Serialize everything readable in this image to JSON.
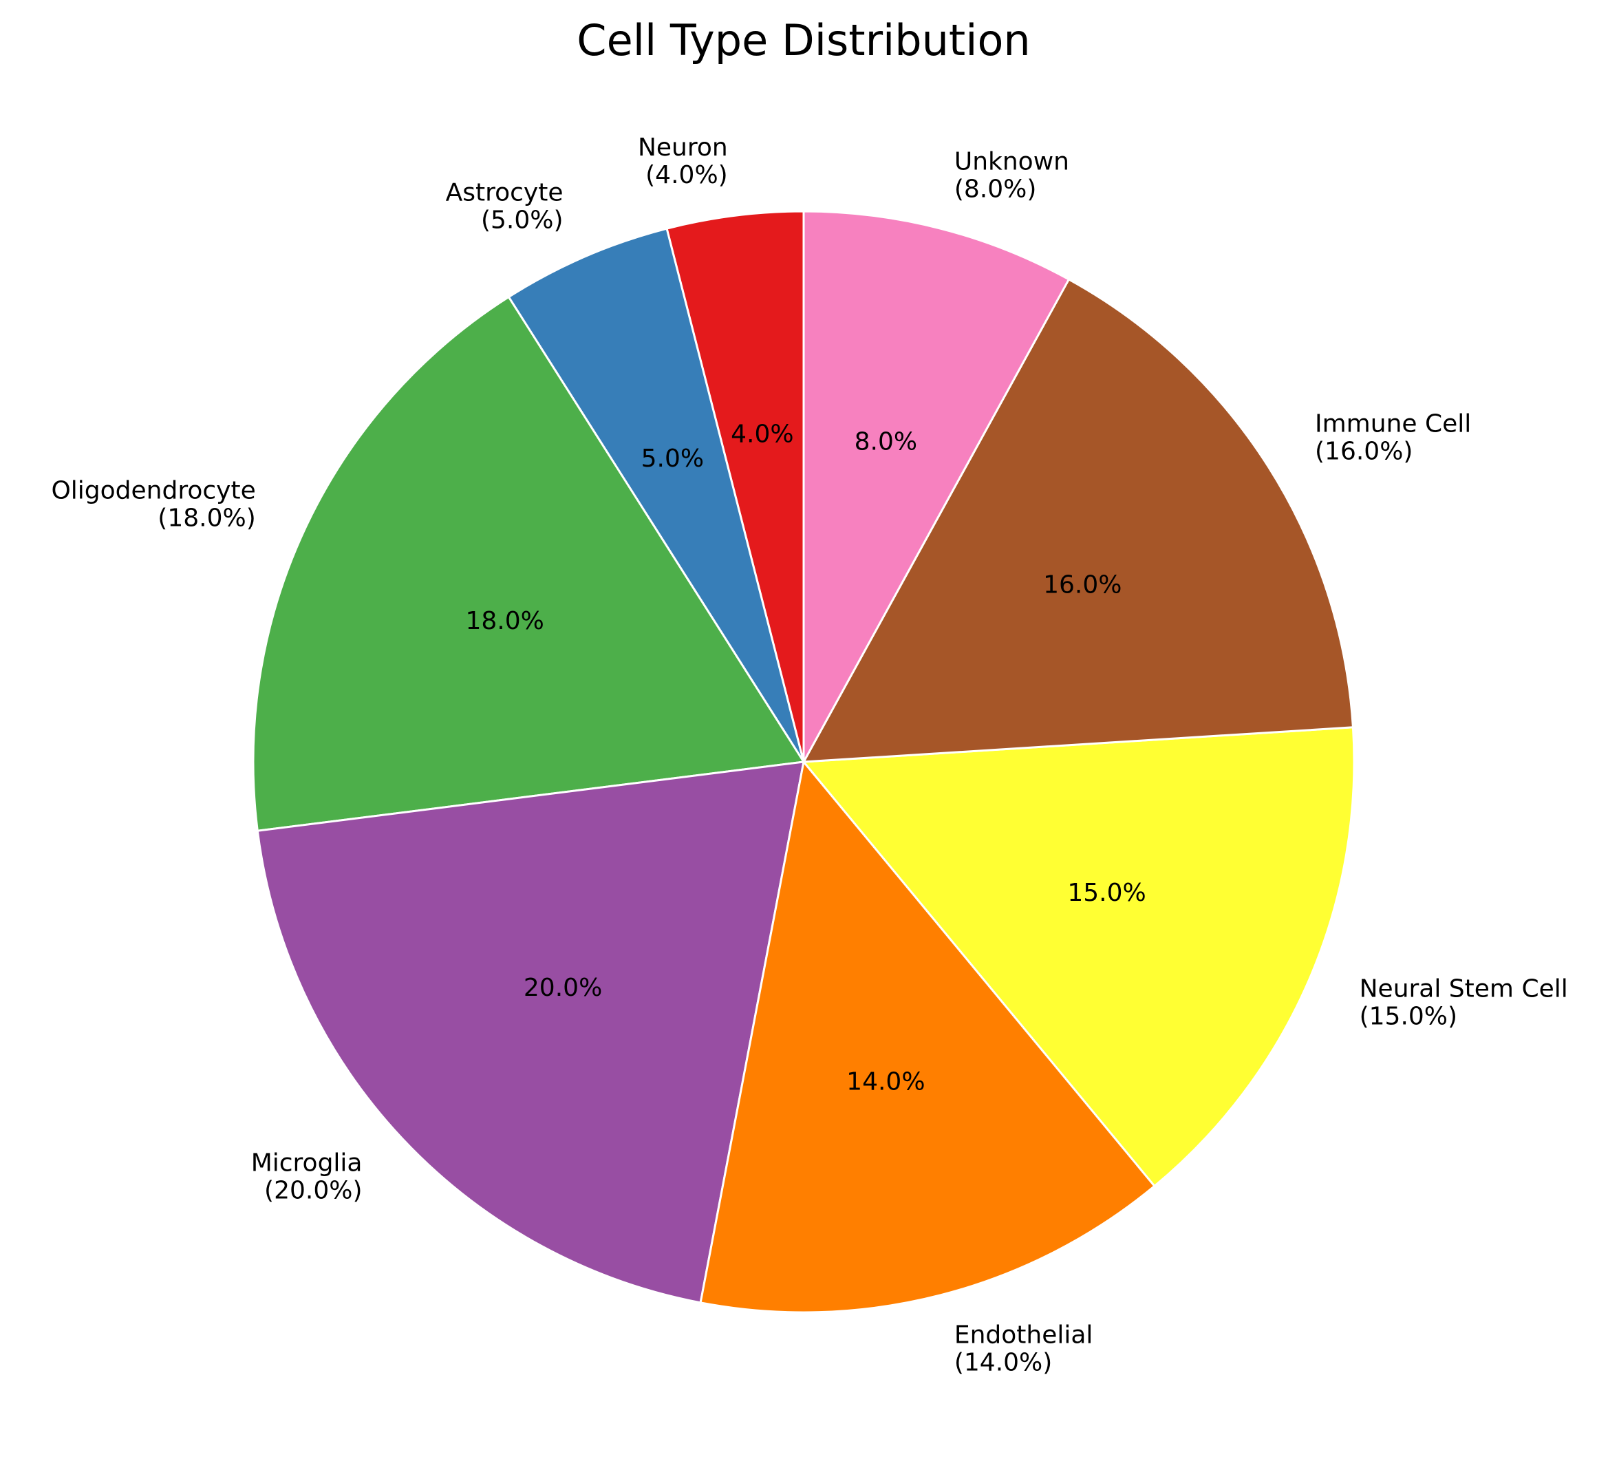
{
  "chart_data": {
    "type": "pie",
    "title": "Cell Type Distribution",
    "categories": [
      "Neuron",
      "Astrocyte",
      "Oligodendrocyte",
      "Microglia",
      "Endothelial",
      "Neural Stem Cell",
      "Immune Cell",
      "Unknown"
    ],
    "values": [
      4.0,
      5.0,
      18.0,
      20.0,
      14.0,
      15.0,
      16.0,
      8.0
    ],
    "slice_labels": [
      "4.0%",
      "5.0%",
      "18.0%",
      "20.0%",
      "14.0%",
      "15.0%",
      "16.0%",
      "8.0%"
    ],
    "outer_labels": [
      {
        "name": "Neuron",
        "pct": "(4.0%)"
      },
      {
        "name": "Astrocyte",
        "pct": "(5.0%)"
      },
      {
        "name": "Oligodendrocyte",
        "pct": "(18.0%)"
      },
      {
        "name": "Microglia",
        "pct": "(20.0%)"
      },
      {
        "name": "Endothelial",
        "pct": "(14.0%)"
      },
      {
        "name": "Neural Stem Cell",
        "pct": "(15.0%)"
      },
      {
        "name": "Immune Cell",
        "pct": "(16.0%)"
      },
      {
        "name": "Unknown",
        "pct": "(8.0%)"
      }
    ],
    "colors": [
      "#e41a1c",
      "#377eb8",
      "#4daf4a",
      "#984ea3",
      "#ff7f00",
      "#ffff33",
      "#a65628",
      "#f781bf"
    ],
    "slice_edge_color": "#ffffff",
    "start_angle_deg": 90,
    "direction": "counterclockwise",
    "legend": "none"
  }
}
